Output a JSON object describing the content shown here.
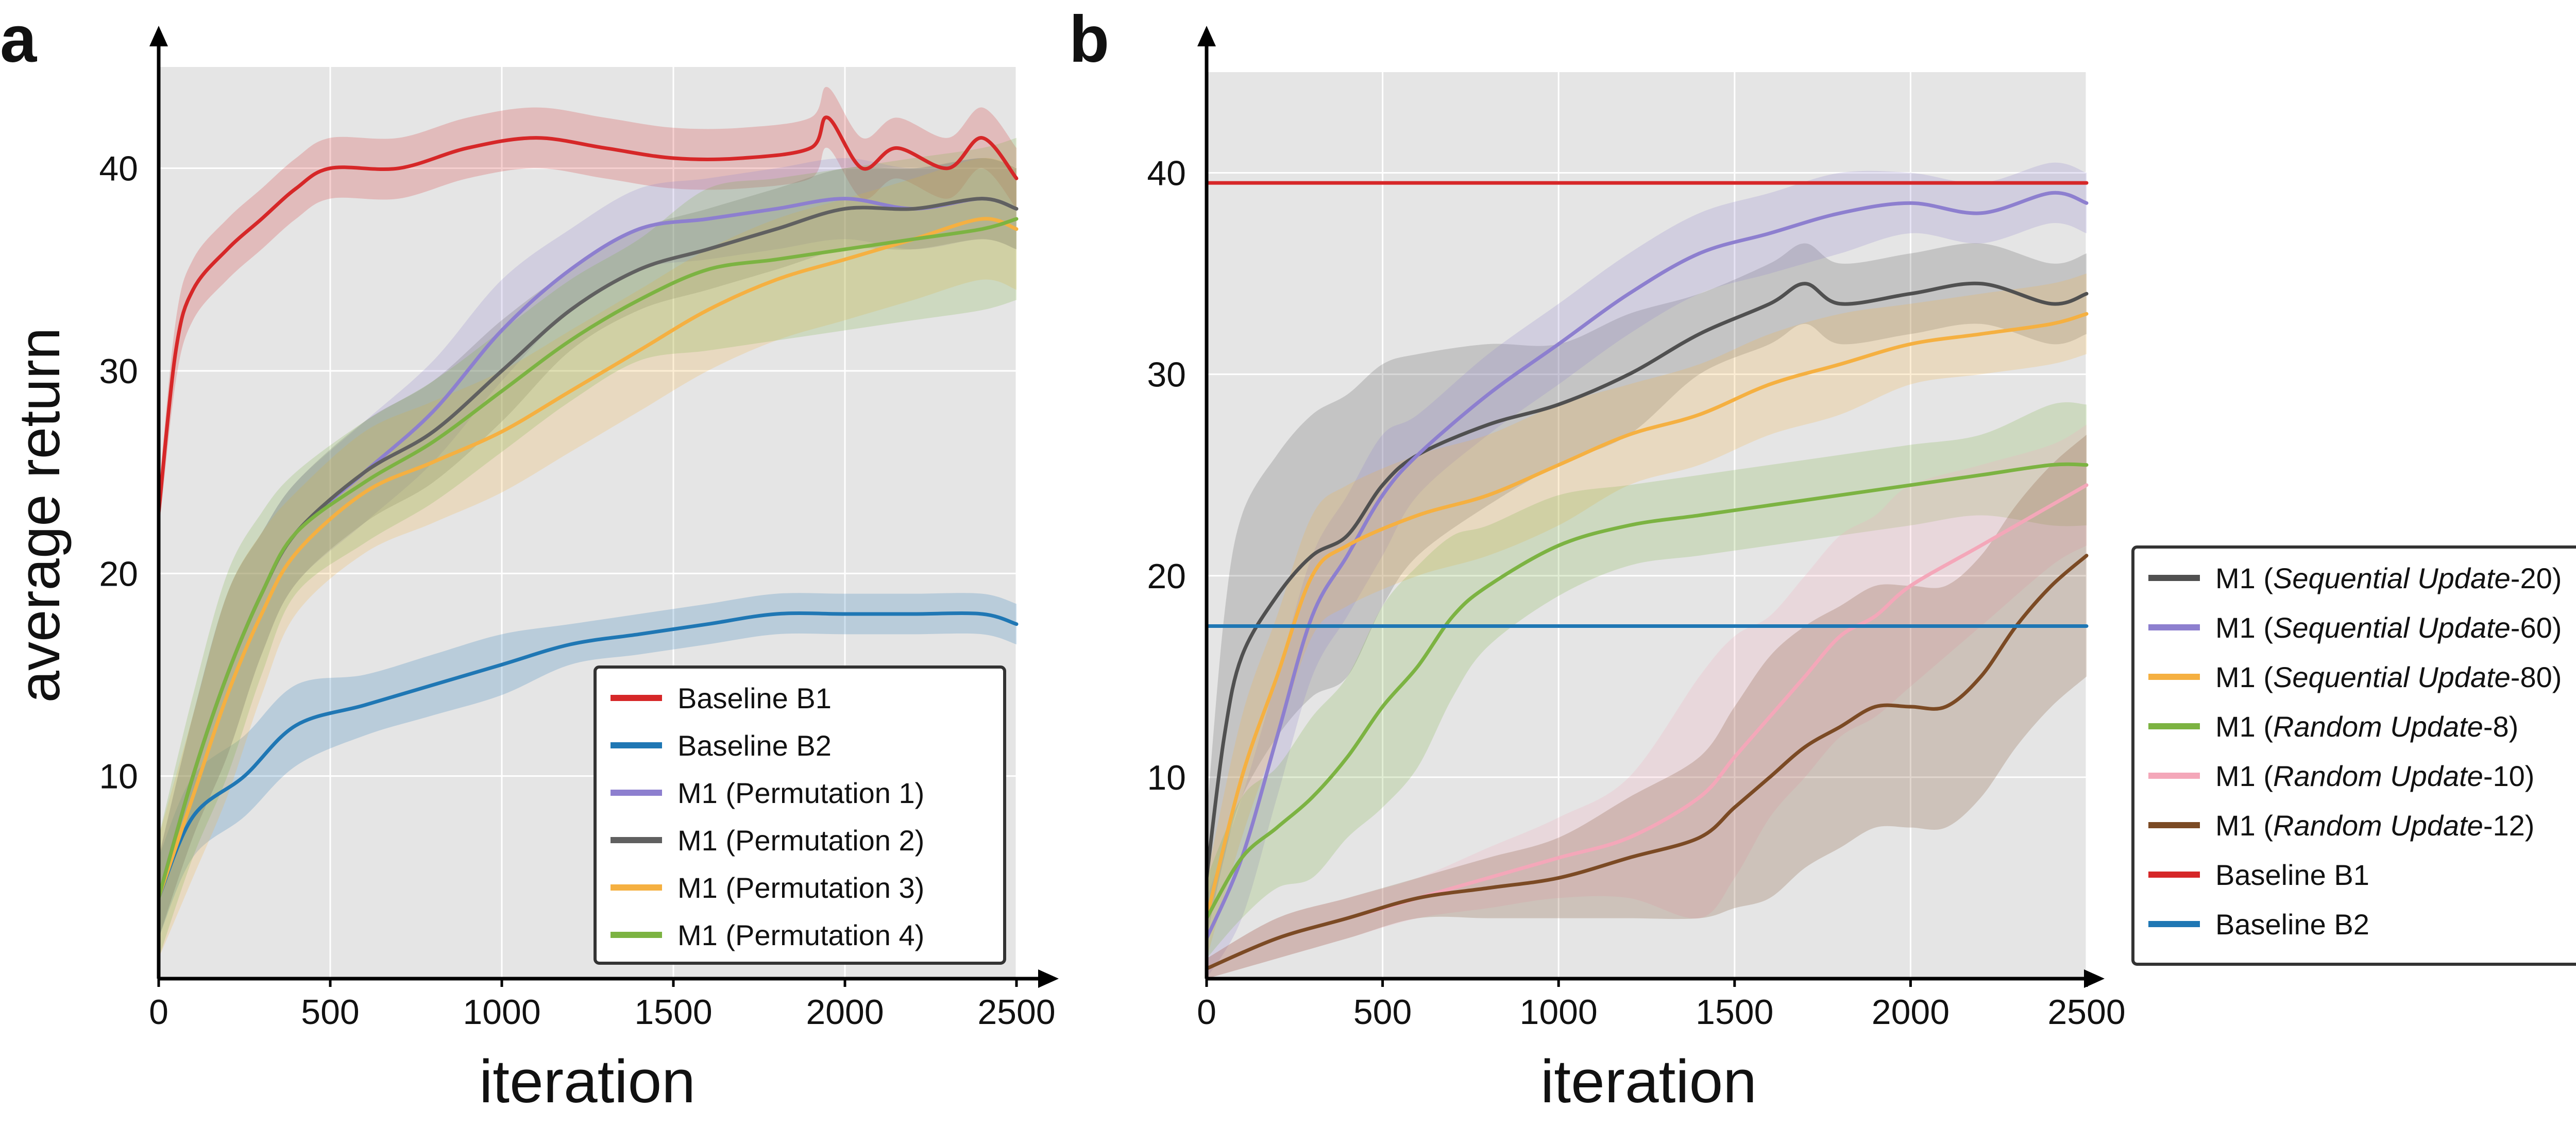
{
  "chart_data": [
    {
      "panel": "a",
      "type": "line",
      "xlabel": "iteration",
      "ylabel": "average return",
      "xlim": [
        0,
        2500
      ],
      "ylim": [
        0,
        45
      ],
      "xticks": [
        "0",
        "500",
        "1000",
        "1500",
        "2000",
        "2500"
      ],
      "yticks": [
        "10",
        "20",
        "30",
        "40"
      ],
      "grid": true,
      "legend_position": "bottom-right",
      "series": [
        {
          "name": "Baseline B1",
          "color": "#d62728",
          "x": [
            0,
            50,
            100,
            200,
            300,
            400,
            500,
            700,
            900,
            1100,
            1300,
            1500,
            1700,
            1900,
            1950,
            2050,
            2150,
            2300,
            2400,
            2500
          ],
          "y": [
            23,
            31,
            34,
            36,
            37.5,
            39,
            40,
            40,
            41,
            41.5,
            41,
            40.5,
            40.5,
            41,
            42.5,
            40,
            41,
            40,
            41.5,
            39.5
          ],
          "band": [
            1,
            1.5,
            1.5,
            1.5,
            1.5,
            1.5,
            1.5,
            1.5,
            1.5,
            1.5,
            1.5,
            1.5,
            1.5,
            1.5,
            1.5,
            1.5,
            1.5,
            1.5,
            1.5,
            1.5
          ]
        },
        {
          "name": "Baseline B2",
          "color": "#1f77b4",
          "x": [
            0,
            100,
            250,
            400,
            600,
            800,
            1000,
            1200,
            1400,
            1600,
            1800,
            2000,
            2200,
            2400,
            2500
          ],
          "y": [
            4,
            8,
            10,
            12.5,
            13.5,
            14.5,
            15.5,
            16.5,
            17,
            17.5,
            18,
            18,
            18,
            18,
            17.5
          ],
          "band": [
            2,
            2,
            2,
            2,
            1.5,
            1.5,
            1.5,
            1,
            1,
            1,
            1,
            1,
            1,
            1,
            1
          ]
        },
        {
          "name": "M1 (Permutation 1)",
          "color": "#8d7fcf",
          "x": [
            0,
            100,
            200,
            300,
            400,
            600,
            800,
            1000,
            1200,
            1400,
            1600,
            1800,
            2000,
            2200,
            2400,
            2500
          ],
          "y": [
            4,
            10,
            15,
            19,
            22,
            25,
            28,
            32,
            35,
            37,
            37.5,
            38,
            38.5,
            38,
            38.5,
            38
          ],
          "band": [
            2,
            3,
            4,
            3,
            2.5,
            2.5,
            2.5,
            2.5,
            2,
            2,
            2,
            2,
            2,
            2,
            2,
            2
          ]
        },
        {
          "name": "M1 (Permutation 2)",
          "color": "#606060",
          "x": [
            0,
            100,
            200,
            300,
            400,
            600,
            800,
            1000,
            1200,
            1400,
            1600,
            1800,
            2000,
            2200,
            2400,
            2500
          ],
          "y": [
            4,
            10,
            15,
            19,
            22,
            25,
            27,
            30,
            33,
            35,
            36,
            37,
            38,
            38,
            38.5,
            38
          ],
          "band": [
            2,
            3,
            4,
            3,
            2.5,
            2.5,
            2.5,
            2.5,
            2,
            2,
            2,
            2,
            2,
            2,
            2,
            2
          ]
        },
        {
          "name": "M1 (Permutation 3)",
          "color": "#f5b041",
          "x": [
            0,
            100,
            200,
            300,
            400,
            600,
            800,
            1000,
            1200,
            1400,
            1600,
            1800,
            2000,
            2200,
            2400,
            2500
          ],
          "y": [
            4,
            9,
            14,
            18,
            21,
            24,
            25.5,
            27,
            29,
            31,
            33,
            34.5,
            35.5,
            36.5,
            37.5,
            37
          ],
          "band": [
            3,
            4,
            5,
            4,
            3,
            3,
            3,
            3,
            3,
            3,
            3,
            3,
            3,
            3,
            3,
            3
          ]
        },
        {
          "name": "M1 (Permutation 4)",
          "color": "#7cb342",
          "x": [
            0,
            100,
            200,
            300,
            400,
            600,
            800,
            1000,
            1200,
            1400,
            1600,
            1800,
            2000,
            2200,
            2400,
            2500
          ],
          "y": [
            4,
            10,
            15,
            19,
            22,
            24.5,
            26.5,
            29,
            31.5,
            33.5,
            35,
            35.5,
            36,
            36.5,
            37,
            37.5
          ],
          "band": [
            3,
            4,
            5,
            4,
            3,
            3,
            3,
            3,
            3,
            3,
            4,
            4,
            4,
            4,
            4,
            4
          ]
        }
      ]
    },
    {
      "panel": "b",
      "type": "line",
      "xlabel": "iteration",
      "ylabel": "",
      "xlim": [
        0,
        2500
      ],
      "ylim": [
        0,
        45
      ],
      "xticks": [
        "0",
        "500",
        "1000",
        "1500",
        "2000",
        "2500"
      ],
      "yticks": [
        "10",
        "20",
        "30",
        "40"
      ],
      "grid": true,
      "legend_position": "outside-right",
      "series": [
        {
          "name": "M1 (Sequential Update-20)",
          "label_prefix": "M1 (",
          "label_italic": "Sequential Update",
          "label_suffix": "-20)",
          "color": "#505050",
          "x": [
            0,
            50,
            100,
            200,
            300,
            400,
            500,
            600,
            800,
            1000,
            1200,
            1400,
            1600,
            1700,
            1800,
            2000,
            2200,
            2400,
            2500
          ],
          "y": [
            5,
            12,
            16,
            19,
            21,
            22,
            24.5,
            26,
            27.5,
            28.5,
            30,
            32,
            33.5,
            34.5,
            33.5,
            34,
            34.5,
            33.5,
            34
          ],
          "band": [
            3,
            6,
            7,
            7,
            7,
            7,
            6,
            5,
            4,
            3,
            3,
            2,
            2,
            2,
            2,
            2,
            2,
            2,
            2
          ]
        },
        {
          "name": "M1 (Sequential Update-60)",
          "label_prefix": "M1 (",
          "label_italic": "Sequential Update",
          "label_suffix": "-60)",
          "color": "#8d7fcf",
          "x": [
            0,
            100,
            200,
            300,
            400,
            500,
            600,
            800,
            1000,
            1200,
            1400,
            1600,
            1800,
            2000,
            2200,
            2400,
            2500
          ],
          "y": [
            2,
            6,
            12,
            18,
            21,
            24,
            26,
            29,
            31.5,
            34,
            36,
            37,
            38,
            38.5,
            38,
            39,
            38.5
          ],
          "band": [
            2,
            3,
            3,
            3,
            3,
            3,
            2,
            2,
            2,
            2,
            2,
            2,
            2,
            1.5,
            1.5,
            1.5,
            1.5
          ]
        },
        {
          "name": "M1 (Sequential Update-80)",
          "label_prefix": "M1 (",
          "label_italic": "Sequential Update",
          "label_suffix": "-80)",
          "color": "#f5b041",
          "x": [
            0,
            100,
            200,
            300,
            400,
            600,
            800,
            1000,
            1200,
            1400,
            1600,
            1800,
            2000,
            2200,
            2400,
            2500
          ],
          "y": [
            3,
            10,
            15,
            20,
            21.5,
            23,
            24,
            25.5,
            27,
            28,
            29.5,
            30.5,
            31.5,
            32,
            32.5,
            33
          ],
          "band": [
            2,
            3,
            3,
            3,
            3,
            3,
            3,
            3,
            2.5,
            2.5,
            2.5,
            2.5,
            2,
            2,
            2,
            2
          ]
        },
        {
          "name": "M1 (Random Update-8)",
          "label_prefix": "M1 (",
          "label_italic": "Random Update",
          "label_suffix": "-8)",
          "color": "#7cb342",
          "x": [
            0,
            100,
            200,
            300,
            400,
            500,
            600,
            700,
            800,
            1000,
            1200,
            1400,
            1600,
            1800,
            2000,
            2200,
            2400,
            2500
          ],
          "y": [
            3,
            6,
            7.5,
            9,
            11,
            13.5,
            15.5,
            18,
            19.5,
            21.5,
            22.5,
            23,
            23.5,
            24,
            24.5,
            25,
            25.5,
            25.5
          ],
          "band": [
            2,
            3,
            3,
            4,
            4,
            5,
            5,
            4,
            3,
            2.5,
            2,
            2,
            2,
            2,
            2,
            2,
            3,
            3
          ]
        },
        {
          "name": "M1 (Random Update-10)",
          "label_prefix": "M1 (",
          "label_italic": "Random Update",
          "label_suffix": "-10)",
          "color": "#f4a7b9",
          "x": [
            0,
            200,
            400,
            600,
            800,
            1000,
            1200,
            1400,
            1500,
            1600,
            1700,
            1800,
            1900,
            2000,
            2200,
            2400,
            2500
          ],
          "y": [
            0.5,
            2,
            3,
            4,
            5,
            6,
            7,
            9,
            11,
            13,
            15,
            17,
            18,
            19.5,
            21.5,
            23.5,
            24.5
          ],
          "band": [
            0.5,
            1,
            1,
            1,
            1.5,
            2,
            3,
            6,
            6,
            5,
            5,
            5,
            5,
            5,
            4,
            3,
            3
          ]
        },
        {
          "name": "M1 (Random Update-12)",
          "label_prefix": "M1 (",
          "label_italic": "Random Update",
          "label_suffix": "-12)",
          "color": "#7b4a24",
          "x": [
            0,
            200,
            400,
            600,
            800,
            1000,
            1200,
            1400,
            1500,
            1600,
            1700,
            1800,
            1900,
            2000,
            2100,
            2200,
            2300,
            2400,
            2500
          ],
          "y": [
            0.5,
            2,
            3,
            4,
            4.5,
            5,
            6,
            7,
            8.5,
            10,
            11.5,
            12.5,
            13.5,
            13.5,
            13.5,
            15,
            17.5,
            19.5,
            21
          ],
          "band": [
            0.5,
            1,
            1,
            1,
            1.5,
            2,
            3,
            4,
            5,
            6,
            6,
            6,
            6,
            6,
            6,
            6,
            6,
            6,
            6
          ]
        },
        {
          "name": "Baseline B1",
          "color": "#d62728",
          "x": [
            0,
            2500
          ],
          "y": [
            39.5,
            39.5
          ]
        },
        {
          "name": "Baseline B2",
          "color": "#1f77b4",
          "x": [
            0,
            2500
          ],
          "y": [
            17.5,
            17.5
          ]
        }
      ]
    }
  ]
}
